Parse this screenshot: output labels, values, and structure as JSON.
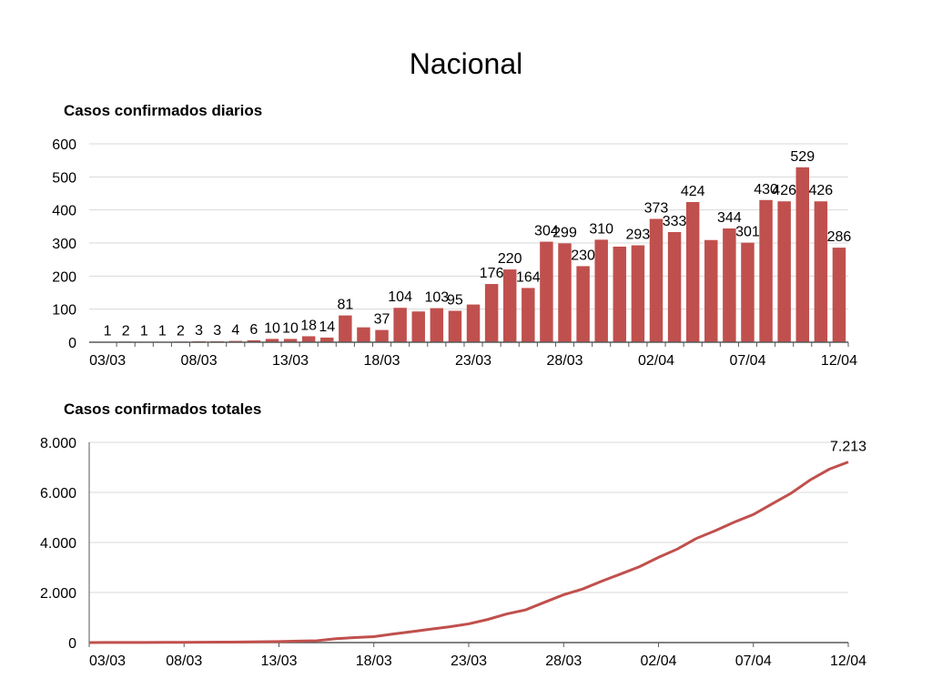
{
  "title": "Nacional",
  "colors": {
    "bar": "#c0504d",
    "line": "#c0504d",
    "grid": "#d9d9d9",
    "axis": "#595959"
  },
  "chart_data": [
    {
      "type": "bar",
      "title": "Casos confirmados diarios",
      "categories": [
        "03/03",
        "04/03",
        "05/03",
        "06/03",
        "07/03",
        "08/03",
        "09/03",
        "10/03",
        "11/03",
        "12/03",
        "13/03",
        "14/03",
        "15/03",
        "16/03",
        "17/03",
        "18/03",
        "19/03",
        "20/03",
        "21/03",
        "22/03",
        "23/03",
        "24/03",
        "25/03",
        "26/03",
        "27/03",
        "28/03",
        "29/03",
        "30/03",
        "31/03",
        "01/04",
        "02/04",
        "03/04",
        "04/04",
        "05/04",
        "06/04",
        "07/04",
        "08/04",
        "09/04",
        "10/04",
        "11/04",
        "12/04"
      ],
      "values": [
        1,
        2,
        1,
        1,
        2,
        3,
        3,
        4,
        6,
        10,
        10,
        18,
        14,
        81,
        45,
        37,
        104,
        93,
        103,
        95,
        114,
        176,
        220,
        164,
        304,
        299,
        230,
        310,
        289,
        293,
        373,
        333,
        424,
        309,
        344,
        301,
        430,
        426,
        529,
        426,
        286
      ],
      "data_labels": [
        "1",
        "2",
        "1",
        "1",
        "2",
        "3",
        "3",
        "4",
        "6",
        "10",
        "10",
        "18",
        "14",
        "81",
        null,
        "37",
        "104",
        null,
        "103",
        "95",
        null,
        "176",
        "220",
        "164",
        "304",
        "299",
        "230",
        "310",
        null,
        "293",
        "373",
        "333",
        "424",
        null,
        "344",
        "301",
        "430",
        "426",
        "529",
        "426",
        "286"
      ],
      "x_tick_labels": [
        "03/03",
        "08/03",
        "13/03",
        "18/03",
        "23/03",
        "28/03",
        "02/04",
        "07/04",
        "12/04"
      ],
      "y_tick_labels": [
        "0",
        "100",
        "200",
        "300",
        "400",
        "500",
        "600"
      ],
      "ylim": [
        0,
        600
      ],
      "grid": true
    },
    {
      "type": "line",
      "title": "Casos confirmados totales",
      "categories_from": "daily",
      "end_label": "7.213",
      "x_tick_labels": [
        "03/03",
        "08/03",
        "13/03",
        "18/03",
        "23/03",
        "28/03",
        "02/04",
        "07/04",
        "12/04"
      ],
      "y_tick_labels": [
        "0",
        "2.000",
        "4.000",
        "6.000",
        "8.000"
      ],
      "ylim": [
        0,
        8000
      ],
      "grid": true
    }
  ]
}
